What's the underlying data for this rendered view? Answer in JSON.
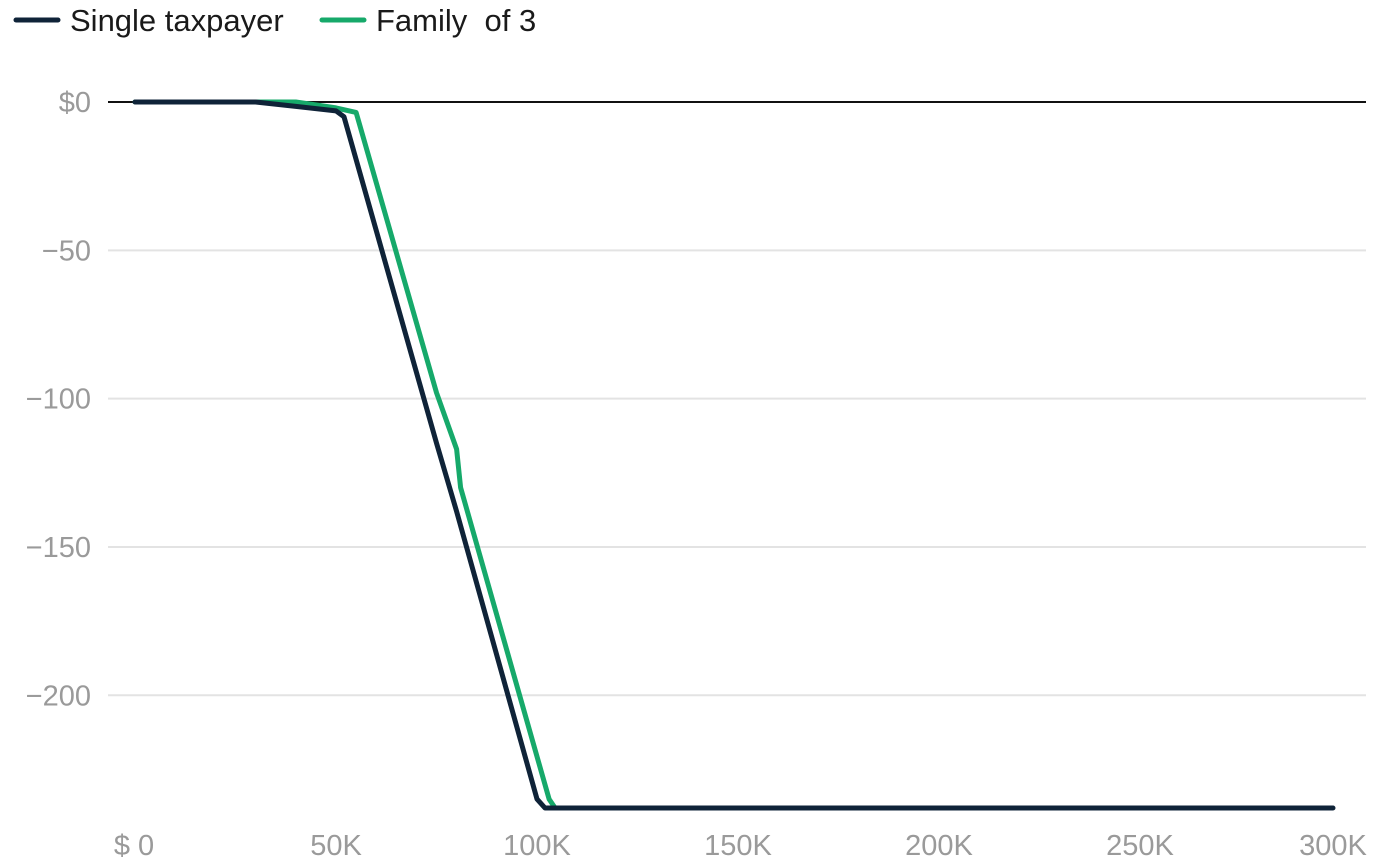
{
  "chart_data": {
    "type": "line",
    "title": "",
    "xlabel": "",
    "ylabel": "",
    "xlim": [
      0,
      300000
    ],
    "ylim": [
      -238,
      0
    ],
    "x_ticks": [
      {
        "value": 0,
        "label": "$ 0"
      },
      {
        "value": 50000,
        "label": "50K"
      },
      {
        "value": 100000,
        "label": "100K"
      },
      {
        "value": 150000,
        "label": "150K"
      },
      {
        "value": 200000,
        "label": "200K"
      },
      {
        "value": 250000,
        "label": "250K"
      },
      {
        "value": 300000,
        "label": "300K"
      }
    ],
    "y_ticks": [
      {
        "value": 0,
        "label": "$0"
      },
      {
        "value": -50,
        "label": "−50"
      },
      {
        "value": -100,
        "label": "−100"
      },
      {
        "value": -150,
        "label": "−150"
      },
      {
        "value": -200,
        "label": "−200"
      }
    ],
    "grid": true,
    "legend_position": "top-left",
    "series": [
      {
        "name": "Single taxpayer",
        "color": "#0f2338",
        "points": [
          [
            0,
            0
          ],
          [
            30000,
            0
          ],
          [
            40000,
            -1.5
          ],
          [
            50000,
            -3
          ],
          [
            52000,
            -5
          ],
          [
            75000,
            -115
          ],
          [
            80000,
            -138
          ],
          [
            100000,
            -235
          ],
          [
            102000,
            -238
          ],
          [
            150000,
            -238
          ],
          [
            200000,
            -238
          ],
          [
            250000,
            -238
          ],
          [
            298000,
            -238
          ]
        ]
      },
      {
        "name": "Family  of 3",
        "color": "#16a96a",
        "points": [
          [
            0,
            0
          ],
          [
            40000,
            0
          ],
          [
            50000,
            -2
          ],
          [
            55000,
            -3.5
          ],
          [
            75000,
            -98
          ],
          [
            80000,
            -117
          ],
          [
            81000,
            -130
          ],
          [
            103000,
            -235
          ],
          [
            104500,
            -238
          ],
          [
            105000,
            -238
          ]
        ]
      }
    ]
  }
}
